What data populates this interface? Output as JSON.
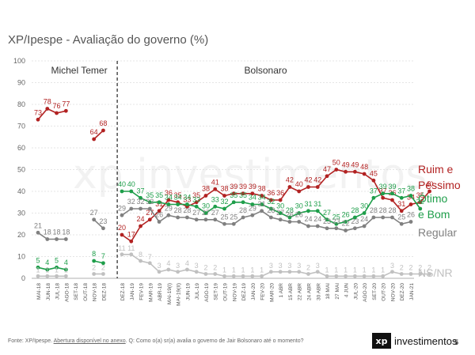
{
  "title": "XP/Ipespe - Avaliação do governo (%)",
  "footer": {
    "source_prefix": "Fonte: XP/Ipespe. ",
    "source_link": "Abertura disponível no anexo",
    "source_suffix": ". Q: Como o(a) sr(a) avalia o governo de Jair Bolsonaro até o momento?",
    "brand_mark": "xp",
    "brand_word": "investimentos",
    "page_number": "5"
  },
  "chart_data": {
    "type": "line",
    "title": "XP/Ipespe - Avaliação do governo (%)",
    "xlabel": "",
    "ylabel": "",
    "ylim": [
      0,
      100
    ],
    "yticks": [
      0,
      10,
      20,
      30,
      40,
      50,
      60,
      70,
      80,
      90,
      100
    ],
    "grid": true,
    "periods": [
      {
        "label": "Michel Temer",
        "divider_after_index": 9
      },
      {
        "label": "Bolsonaro"
      }
    ],
    "x_labels": [
      "MAI-18",
      "JUN-18",
      "JUL-18",
      "AGO-18",
      "SET-18",
      "OUT-18",
      "NOV-18",
      "DEZ-18",
      "DEZ-18",
      "JAN-19",
      "FEV-19",
      "MAR-19",
      "ABR-19",
      "MAI-19(I)",
      "MAI-19(II)",
      "JUN-19",
      "JUL-19",
      "AGO-19",
      "SET-19",
      "OUT-19",
      "NOV-19",
      "DEZ-19",
      "JAN-20",
      "FEV-20",
      "MAR-20",
      "1 ABR",
      "15 ABR",
      "22 ABR",
      "24 ABR",
      "30 ABR",
      "18 MAI",
      "27 MAI",
      "4 JUN",
      "JUL-20",
      "AGO-20",
      "SET-20",
      "OUT-20",
      "NOV-20",
      "DEZ-20",
      "JAN-21"
    ],
    "x_label_indices": [
      0,
      1,
      2,
      3,
      4,
      5,
      6,
      7,
      9,
      10,
      11,
      12,
      13,
      14,
      15,
      16,
      17,
      18,
      19,
      20,
      21,
      22,
      23,
      24,
      25,
      26,
      27,
      28,
      29,
      30,
      31,
      32,
      33,
      34,
      35,
      36,
      37,
      38,
      39,
      40
    ],
    "n_points": 41,
    "series": [
      {
        "name": "Ruim e Péssimo",
        "legend_lines": [
          "Ruim e",
          "Péssimo"
        ],
        "color": "#b22222",
        "segments": [
          {
            "start": 0,
            "values": [
              73,
              78,
              76,
              77
            ]
          },
          {
            "start": 6,
            "values": [
              64,
              68
            ]
          },
          {
            "start": 9,
            "values": [
              20,
              17,
              24,
              27,
              31,
              36,
              35,
              33,
              35,
              38,
              41,
              38,
              39,
              39,
              39,
              38,
              36,
              36,
              42,
              40,
              42,
              42,
              47,
              50,
              49,
              49,
              48,
              45,
              37,
              36,
              31,
              34,
              35,
              40
            ]
          }
        ]
      },
      {
        "name": "Ótimo e Bom",
        "legend_lines": [
          "Ótimo",
          "e Bom"
        ],
        "color": "#1e9e4a",
        "segments": [
          {
            "start": 0,
            "values": [
              5,
              4,
              5,
              4
            ]
          },
          {
            "start": 6,
            "values": [
              8,
              7
            ]
          },
          {
            "start": 9,
            "values": [
              40,
              40,
              37,
              35,
              35,
              34,
              34,
              34,
              33,
              30,
              33,
              32,
              35,
              35,
              34,
              34,
              32,
              30,
              28,
              30,
              31,
              31,
              27,
              25,
              26,
              28,
              30,
              37,
              39,
              39,
              37,
              38,
              32
            ]
          }
        ]
      },
      {
        "name": "Regular",
        "legend_lines": [
          "Regular"
        ],
        "color": "#808080",
        "segments": [
          {
            "start": 0,
            "values": [
              21,
              18,
              18,
              18
            ]
          },
          {
            "start": 6,
            "values": [
              27,
              23
            ]
          },
          {
            "start": 9,
            "values": [
              29,
              32,
              32,
              32,
              26,
              29,
              28,
              28,
              27,
              27,
              27,
              25,
              25,
              28,
              29,
              31,
              28,
              27,
              26,
              26,
              24,
              24,
              23,
              23,
              22,
              23,
              24,
              28,
              28,
              28,
              25,
              26
            ]
          }
        ]
      },
      {
        "name": "NS/NR",
        "legend_lines": [
          "NS/NR"
        ],
        "color": "#c0c0c0",
        "segments": [
          {
            "start": 0,
            "values": [
              1,
              1,
              1,
              1
            ]
          },
          {
            "start": 6,
            "values": [
              2,
              2
            ]
          },
          {
            "start": 9,
            "values": [
              11,
              11,
              8,
              7,
              3,
              4,
              3,
              4,
              3,
              2,
              2,
              1,
              1,
              1,
              1,
              1,
              3,
              3,
              3,
              3,
              2,
              3,
              1,
              1,
              1,
              1,
              1,
              1,
              1,
              3,
              2,
              2,
              2,
              2
            ]
          }
        ]
      }
    ],
    "watermark": "xp investimentos"
  }
}
